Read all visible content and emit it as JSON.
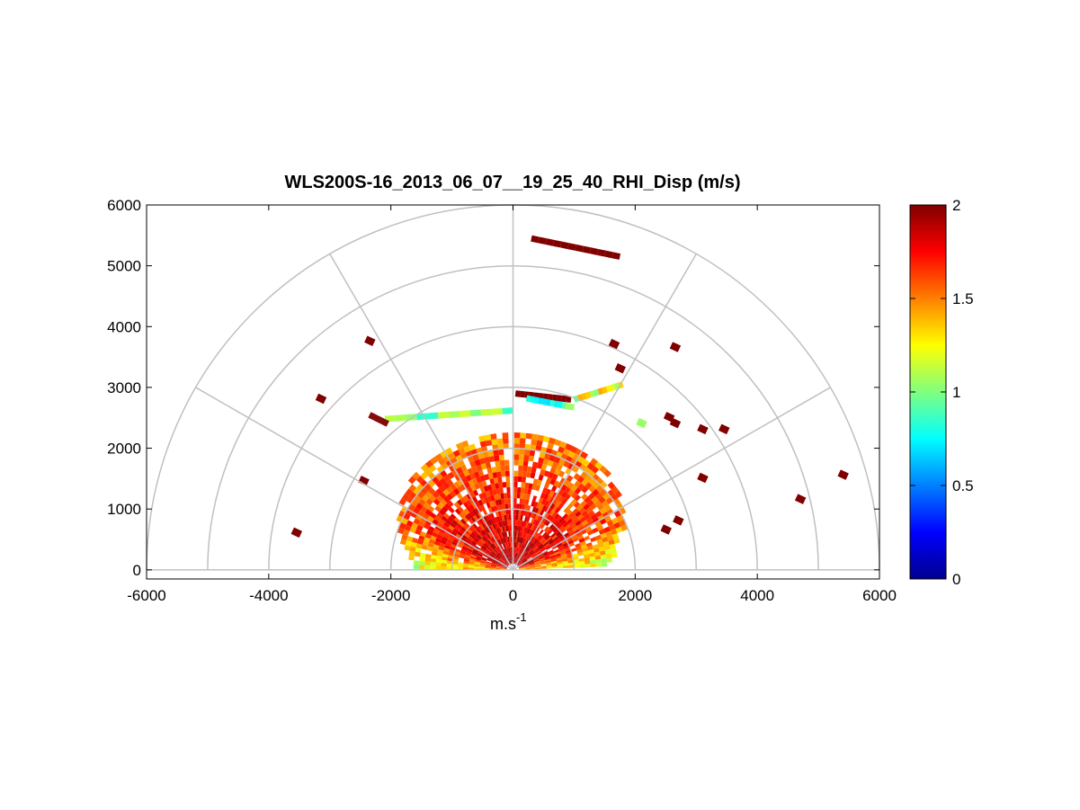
{
  "chart_data": {
    "type": "heatmap",
    "subtype": "polar-rhi",
    "title": "WLS200S-16_2013_06_07__19_25_40_RHI_Disp (m/s)",
    "xlabel_main": "m.s",
    "xlabel_sup": "-1",
    "ylabel": "",
    "xlim": [
      -6000,
      6000
    ],
    "ylim": [
      0,
      6000
    ],
    "x_ticks": [
      -6000,
      -4000,
      -2000,
      0,
      2000,
      4000,
      6000
    ],
    "y_ticks": [
      0,
      1000,
      2000,
      3000,
      4000,
      5000,
      6000
    ],
    "polar_rings": [
      1000,
      2000,
      3000,
      4000,
      5000,
      6000
    ],
    "polar_spokes_deg": [
      30,
      60,
      90,
      120,
      150
    ],
    "colorbar": {
      "colormap": "jet",
      "range": [
        0,
        2
      ],
      "ticks": [
        0,
        0.5,
        1,
        1.5,
        2
      ],
      "tick_labels": [
        "0",
        "0.5",
        "1",
        "1.5",
        "2"
      ]
    },
    "grid": true,
    "sectors": [
      {
        "az_from": 2,
        "az_to": 88,
        "r_from": 100,
        "r_to": 2200,
        "value_near": 1.9,
        "value_far": 1.5,
        "note": "right lobe (low elevations greener)"
      },
      {
        "az_from": 92,
        "az_to": 178,
        "r_from": 100,
        "r_to": 2200,
        "value_near": 1.9,
        "value_far": 1.5,
        "note": "left lobe"
      }
    ],
    "features": [
      {
        "x": [
          300,
          1750
        ],
        "y": [
          5450,
          5150
        ],
        "value": 2.0
      },
      {
        "x": [
          40,
          950
        ],
        "y": [
          2900,
          2800
        ],
        "value": 2.0
      },
      {
        "x": [
          220,
          1000
        ],
        "y": [
          2820,
          2670
        ],
        "value": 0.85
      },
      {
        "x": [
          -2100,
          0
        ],
        "y": [
          2480,
          2620
        ],
        "value": 1.05
      },
      {
        "x": [
          -2350,
          -2050
        ],
        "y": [
          2550,
          2400
        ],
        "value": 2.0
      },
      {
        "x": [
          1000,
          1800
        ],
        "y": [
          2800,
          3050
        ],
        "value": 1.2
      }
    ],
    "scatter_cells": [
      {
        "x": -3550,
        "y": 600,
        "value": 2.0
      },
      {
        "x": -3150,
        "y": 2800,
        "value": 2.0
      },
      {
        "x": -2350,
        "y": 3750,
        "value": 2.0
      },
      {
        "x": -2450,
        "y": 1450,
        "value": 2.0
      },
      {
        "x": 1650,
        "y": 3700,
        "value": 2.0
      },
      {
        "x": 1750,
        "y": 3300,
        "value": 2.0
      },
      {
        "x": 2650,
        "y": 3650,
        "value": 2.0
      },
      {
        "x": 2550,
        "y": 2500,
        "value": 2.0
      },
      {
        "x": 2650,
        "y": 2400,
        "value": 2.0
      },
      {
        "x": 3450,
        "y": 2300,
        "value": 2.0
      },
      {
        "x": 3100,
        "y": 2300,
        "value": 2.0
      },
      {
        "x": 3100,
        "y": 1500,
        "value": 2.0
      },
      {
        "x": 4700,
        "y": 1150,
        "value": 2.0
      },
      {
        "x": 5400,
        "y": 1550,
        "value": 2.0
      },
      {
        "x": 2100,
        "y": 2400,
        "value": 1.05
      },
      {
        "x": 2700,
        "y": 800,
        "value": 2.0
      },
      {
        "x": 2500,
        "y": 650,
        "value": 2.0
      }
    ]
  }
}
